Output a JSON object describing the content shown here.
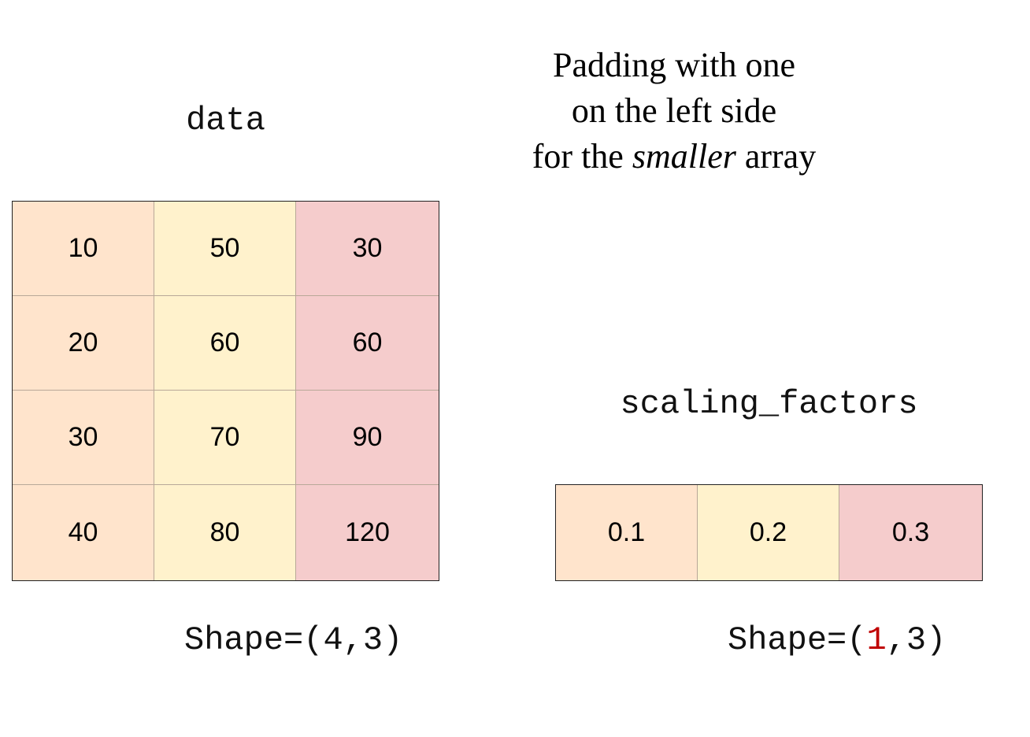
{
  "data_array": {
    "label": "data",
    "rows": [
      [
        "10",
        "50",
        "30"
      ],
      [
        "20",
        "60",
        "60"
      ],
      [
        "30",
        "70",
        "90"
      ],
      [
        "40",
        "80",
        "120"
      ]
    ],
    "shape_prefix": "Shape=(",
    "shape_dim0": "4",
    "shape_rest": ",3)"
  },
  "note": {
    "line1": "Padding with one",
    "line2": "on the left side",
    "line3_before": "for the ",
    "line3_emph": "smaller",
    "line3_after": " array"
  },
  "scaling_array": {
    "label": "scaling_factors",
    "values": [
      "0.1",
      "0.2",
      "0.3"
    ],
    "shape_prefix": "Shape=(",
    "shape_dim0": "1",
    "shape_rest": ",3)"
  },
  "colors": {
    "col0": "#ffe4cc",
    "col1": "#fff2cc",
    "col2": "#f5cccc",
    "accent": "#c00000"
  }
}
